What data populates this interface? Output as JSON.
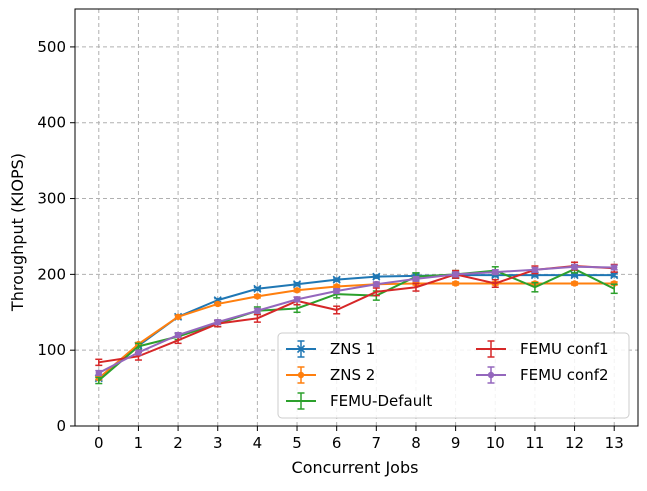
{
  "chart_data": {
    "type": "line",
    "xlabel": "Concurrent Jobs",
    "ylabel": "Throughput (KIOPS)",
    "x": [
      0,
      1,
      2,
      3,
      4,
      5,
      6,
      7,
      8,
      9,
      10,
      11,
      12,
      13
    ],
    "xlim": [
      -0.6,
      13.6
    ],
    "ylim": [
      0,
      550
    ],
    "yticks": [
      0,
      100,
      200,
      300,
      400,
      500
    ],
    "grid": true,
    "legend": {
      "placement": "lower-right",
      "columns": 2
    },
    "series": [
      {
        "name": "ZNS 1",
        "color": "#1f77b4",
        "marker": "x",
        "values": [
          63,
          106,
          144,
          166,
          181,
          187,
          193,
          197,
          198,
          199,
          199,
          199,
          199,
          199
        ],
        "errors": [
          2,
          2,
          2,
          2,
          2,
          2,
          2,
          2,
          2,
          2,
          2,
          2,
          2,
          2
        ]
      },
      {
        "name": "ZNS 2",
        "color": "#ff7f0e",
        "marker": "circle",
        "values": [
          63,
          108,
          144,
          161,
          171,
          179,
          184,
          187,
          188,
          188,
          188,
          188,
          188,
          188
        ],
        "errors": [
          2,
          2,
          2,
          2,
          2,
          2,
          2,
          2,
          2,
          2,
          2,
          2,
          2,
          2
        ]
      },
      {
        "name": "FEMU-Default",
        "color": "#2ca02c",
        "marker": "none",
        "values": [
          60,
          105,
          118,
          135,
          152,
          155,
          174,
          172,
          197,
          200,
          205,
          183,
          207,
          181
        ],
        "errors": [
          4,
          4,
          4,
          4,
          5,
          5,
          5,
          6,
          5,
          5,
          5,
          6,
          5,
          6
        ]
      },
      {
        "name": "FEMU conf1",
        "color": "#d62728",
        "marker": "none",
        "values": [
          84,
          92,
          113,
          135,
          142,
          165,
          153,
          177,
          183,
          200,
          188,
          206,
          211,
          208
        ],
        "errors": [
          4,
          5,
          4,
          4,
          5,
          5,
          5,
          5,
          5,
          5,
          5,
          5,
          5,
          5
        ]
      },
      {
        "name": "FEMU conf2",
        "color": "#9467bd",
        "marker": "circle",
        "values": [
          70,
          97,
          120,
          137,
          152,
          167,
          178,
          187,
          194,
          200,
          203,
          206,
          210,
          209
        ],
        "errors": [
          3,
          3,
          3,
          3,
          3,
          3,
          3,
          3,
          3,
          3,
          3,
          3,
          3,
          3
        ]
      }
    ]
  }
}
